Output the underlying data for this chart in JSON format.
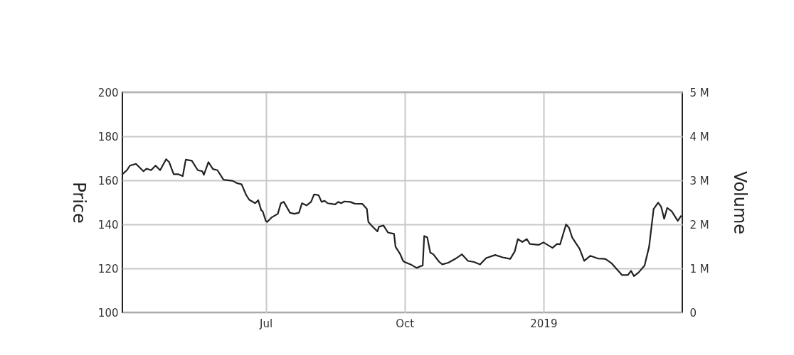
{
  "chart_data": {
    "type": "line",
    "ylabel": "Price",
    "y2label": "Volume",
    "x": [
      "2018-03-28",
      "2018-03-31",
      "2018-04-02",
      "2018-04-06",
      "2018-04-11",
      "2018-04-13",
      "2018-04-16",
      "2018-04-19",
      "2018-04-22",
      "2018-04-26",
      "2018-04-28",
      "2018-05-01",
      "2018-05-04",
      "2018-05-07",
      "2018-05-09",
      "2018-05-13",
      "2018-05-17",
      "2018-05-20",
      "2018-05-21",
      "2018-05-24",
      "2018-05-27",
      "2018-05-30",
      "2018-06-03",
      "2018-06-09",
      "2018-06-12",
      "2018-06-15",
      "2018-06-18",
      "2018-06-20",
      "2018-06-24",
      "2018-06-26",
      "2018-06-28",
      "2018-06-29",
      "2018-07-01",
      "2018-07-02",
      "2018-07-05",
      "2018-07-09",
      "2018-07-11",
      "2018-07-13",
      "2018-07-17",
      "2018-07-20",
      "2018-07-23",
      "2018-07-25",
      "2018-07-28",
      "2018-07-31",
      "2018-08-02",
      "2018-08-04",
      "2018-08-05",
      "2018-08-07",
      "2018-08-09",
      "2018-08-11",
      "2018-08-16",
      "2018-08-18",
      "2018-08-20",
      "2018-08-22",
      "2018-08-26",
      "2018-08-29",
      "2018-09-03",
      "2018-09-06",
      "2018-09-07",
      "2018-09-09",
      "2018-09-13",
      "2018-09-14",
      "2018-09-17",
      "2018-09-20",
      "2018-09-24",
      "2018-09-25",
      "2018-09-28",
      "2018-09-30",
      "2018-10-01",
      "2018-10-05",
      "2018-10-09",
      "2018-10-12",
      "2018-10-13",
      "2018-10-14",
      "2018-10-16",
      "2018-10-18",
      "2018-10-20",
      "2018-10-24",
      "2018-10-26",
      "2018-10-30",
      "2018-11-04",
      "2018-11-08",
      "2018-11-12",
      "2018-11-16",
      "2018-11-20",
      "2018-11-24",
      "2018-11-30",
      "2018-12-05",
      "2018-12-07",
      "2018-12-10",
      "2018-12-13",
      "2018-12-15",
      "2018-12-18",
      "2018-12-21",
      "2018-12-23",
      "2018-12-29",
      "2019-01-01",
      "2019-01-07",
      "2019-01-10",
      "2019-01-12",
      "2019-01-16",
      "2019-01-18",
      "2019-01-20",
      "2019-01-25",
      "2019-01-28",
      "2019-02-01",
      "2019-02-06",
      "2019-02-11",
      "2019-02-15",
      "2019-02-22",
      "2019-02-26",
      "2019-02-28",
      "2019-03-02",
      "2019-03-05",
      "2019-03-09",
      "2019-03-12",
      "2019-03-15",
      "2019-03-18",
      "2019-03-20",
      "2019-03-22",
      "2019-03-24",
      "2019-03-27",
      "2019-03-31",
      "2019-04-02"
    ],
    "series": [
      {
        "color": "#222222",
        "values": [
          162.8,
          164.6,
          166.7,
          167.5,
          164.1,
          165.3,
          164.6,
          166.7,
          164.6,
          169.6,
          168.3,
          162.8,
          162.8,
          161.9,
          169.4,
          168.9,
          164.6,
          164.1,
          162.5,
          168.3,
          165.1,
          164.6,
          160.3,
          159.8,
          158.7,
          158.2,
          153.4,
          151.2,
          149.6,
          151.0,
          146.4,
          145.9,
          141.6,
          141.1,
          143.2,
          144.8,
          149.6,
          150.2,
          145.3,
          144.8,
          145.3,
          149.6,
          148.6,
          150.2,
          153.6,
          153.4,
          153.2,
          150.2,
          150.7,
          149.6,
          149.1,
          150.2,
          149.6,
          150.4,
          150.2,
          149.4,
          149.3,
          147.0,
          141.1,
          139.5,
          136.8,
          138.9,
          139.5,
          136.3,
          135.7,
          129.8,
          126.6,
          123.4,
          122.9,
          121.8,
          120.2,
          121.1,
          121.3,
          134.7,
          134.1,
          127.2,
          126.4,
          122.9,
          121.8,
          122.6,
          124.5,
          126.4,
          123.4,
          122.9,
          121.8,
          124.7,
          126.1,
          125.0,
          124.7,
          124.3,
          127.7,
          133.3,
          132.0,
          133.3,
          131.1,
          130.7,
          131.8,
          129.3,
          131.1,
          130.9,
          140.0,
          138.4,
          134.1,
          128.8,
          123.4,
          125.7,
          124.5,
          124.3,
          122.4,
          117.0,
          117.0,
          118.9,
          116.5,
          118.1,
          121.3,
          129.8,
          147.0,
          149.9,
          148.0,
          142.5,
          147.5,
          145.9,
          141.6,
          143.7
        ]
      }
    ],
    "xlim": [
      "2018-03-28",
      "2019-04-03"
    ],
    "xticks": [
      {
        "value": "2018-07-01",
        "label": "Jul"
      },
      {
        "value": "2018-10-01",
        "label": "Oct"
      },
      {
        "value": "2019-01-01",
        "label": "2019"
      }
    ],
    "ylim": [
      100,
      200
    ],
    "yticks": [
      100,
      120,
      140,
      160,
      180,
      200
    ],
    "y2lim": [
      0,
      5000000
    ],
    "y2ticks": [
      0,
      {
        "value": 1000000,
        "label": "1 M"
      },
      {
        "value": 2000000,
        "label": "2 M"
      },
      {
        "value": 3000000,
        "label": "3 M"
      },
      {
        "value": 4000000,
        "label": "4 M"
      },
      {
        "value": 5000000,
        "label": "5 M"
      }
    ],
    "grid": true,
    "line_style": "solid",
    "marker": "none"
  }
}
